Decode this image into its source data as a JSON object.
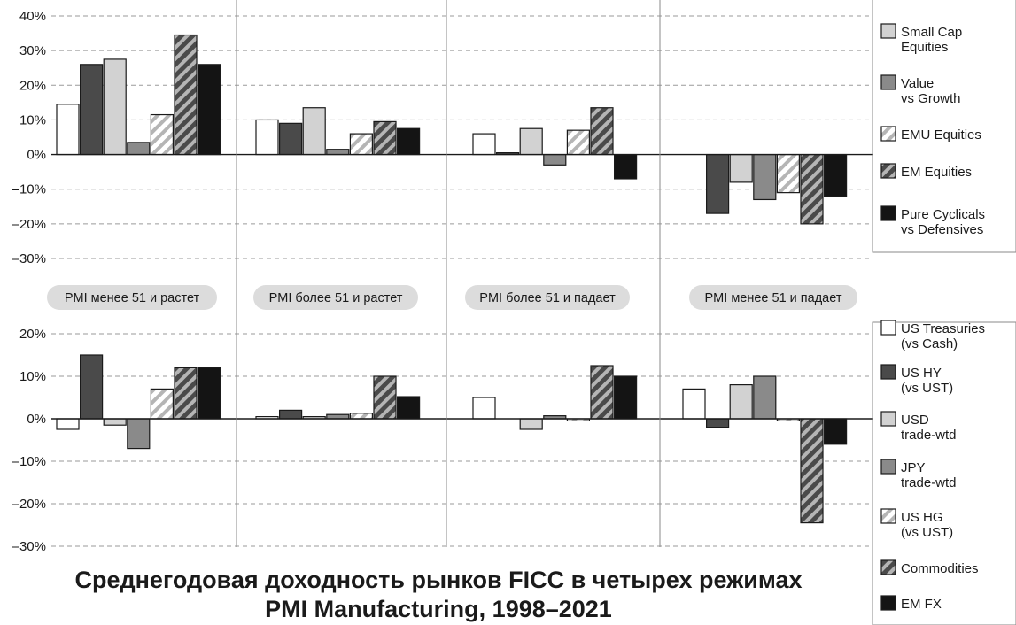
{
  "title_lines": [
    "Среднегодовая доходность рынков FICC в четырех режимах",
    "PMI Manufacturing, 1998–2021"
  ],
  "regimes": [
    "PMI менее 51 и растет",
    "PMI более 51 и растет",
    "PMI более 51 и падает",
    "PMI менее 51 и падает"
  ],
  "colors": {
    "white": "#ffffff",
    "dark": "#4a4a4a",
    "light": "#d2d2d2",
    "mid": "#8a8a8a",
    "black": "#141414",
    "hatch_light_bg": "#ffffff",
    "hatch_light_stripe": "#b5b5b5",
    "hatch_dark_bg": "#4a4a4a",
    "hatch_dark_stripe": "#b5b5b5",
    "border": "#1a1a1a",
    "regime_pill": "#dcdcdc"
  },
  "chart_data": [
    {
      "type": "bar",
      "panel": "top",
      "categories": [
        "PMI менее 51 и растет",
        "PMI более 51 и растет",
        "PMI более 51 и падает",
        "PMI менее 51 и падает"
      ],
      "ylim": [
        -30,
        40
      ],
      "yticks": [
        -30,
        -20,
        -10,
        0,
        10,
        20,
        30,
        40
      ],
      "tick_labels": [
        "–30%",
        "–20%",
        "–10%",
        "0%",
        "10%",
        "20%",
        "30%",
        "40%"
      ],
      "grid": "dashed horizontal",
      "legend_position": "right",
      "series": [
        {
          "name": "",
          "fill": "white",
          "values": [
            14.5,
            10,
            6,
            0
          ]
        },
        {
          "name": "",
          "fill": "dark",
          "values": [
            26,
            9,
            0.5,
            -17
          ]
        },
        {
          "name": "Small Cap Equities",
          "fill": "light",
          "values": [
            27.5,
            13.5,
            7.5,
            -8
          ]
        },
        {
          "name": "Value vs Growth",
          "fill": "mid",
          "values": [
            3.5,
            1.5,
            -3,
            -13
          ]
        },
        {
          "name": "EMU Equities",
          "fill": "hatch_light",
          "values": [
            11.5,
            6,
            7,
            -11
          ]
        },
        {
          "name": "EM Equities",
          "fill": "hatch_dark",
          "values": [
            34.5,
            9.5,
            13.5,
            -20
          ]
        },
        {
          "name": "Pure Cyclicals vs Defensives",
          "fill": "black",
          "values": [
            26,
            7.5,
            -7,
            -12
          ]
        }
      ]
    },
    {
      "type": "bar",
      "panel": "bottom",
      "categories": [
        "PMI менее 51 и растет",
        "PMI более 51 и растет",
        "PMI более 51 и падает",
        "PMI менее 51 и падает"
      ],
      "ylim": [
        -30,
        20
      ],
      "yticks": [
        -30,
        -20,
        -10,
        0,
        10,
        20
      ],
      "tick_labels": [
        "–30%",
        "–20%",
        "–10%",
        "0%",
        "10%",
        "20%"
      ],
      "grid": "dashed horizontal",
      "legend_position": "right",
      "series": [
        {
          "name": "US Treasuries (vs Cash)",
          "fill": "white",
          "values": [
            -2.5,
            0.5,
            5,
            7
          ]
        },
        {
          "name": "US HY (vs UST)",
          "fill": "dark",
          "values": [
            15,
            2,
            0,
            -2
          ]
        },
        {
          "name": "USD trade-wtd",
          "fill": "light",
          "values": [
            -1.5,
            0.5,
            -2.5,
            8
          ]
        },
        {
          "name": "JPY trade-wtd",
          "fill": "mid",
          "values": [
            -7,
            1,
            0.7,
            10
          ]
        },
        {
          "name": "US HG (vs UST)",
          "fill": "hatch_light",
          "values": [
            7,
            1.3,
            -0.5,
            -0.5
          ]
        },
        {
          "name": "Commodities",
          "fill": "hatch_dark",
          "values": [
            12,
            10,
            12.5,
            -24.5
          ]
        },
        {
          "name": "EM FX",
          "fill": "black",
          "values": [
            12,
            5.2,
            10,
            -6
          ]
        }
      ]
    }
  ],
  "legend_top": [
    {
      "lines": [
        "Small Cap",
        "Equities"
      ],
      "fill": "light"
    },
    {
      "lines": [
        "Value",
        "vs Growth"
      ],
      "fill": "mid"
    },
    {
      "lines": [
        "EMU Equities"
      ],
      "fill": "hatch_light"
    },
    {
      "lines": [
        "EM Equities"
      ],
      "fill": "hatch_dark"
    },
    {
      "lines": [
        "Pure Cyclicals",
        "vs Defensives"
      ],
      "fill": "black"
    }
  ],
  "legend_bottom": [
    {
      "lines": [
        "US Treasuries",
        "(vs Cash)"
      ],
      "fill": "white"
    },
    {
      "lines": [
        "US HY",
        "(vs UST)"
      ],
      "fill": "dark"
    },
    {
      "lines": [
        "USD",
        "trade-wtd"
      ],
      "fill": "light"
    },
    {
      "lines": [
        "JPY",
        "trade-wtd"
      ],
      "fill": "mid"
    },
    {
      "lines": [
        "US HG",
        "(vs UST)"
      ],
      "fill": "hatch_light"
    },
    {
      "lines": [
        "Commodities"
      ],
      "fill": "hatch_dark"
    },
    {
      "lines": [
        "EM FX"
      ],
      "fill": "black"
    }
  ]
}
